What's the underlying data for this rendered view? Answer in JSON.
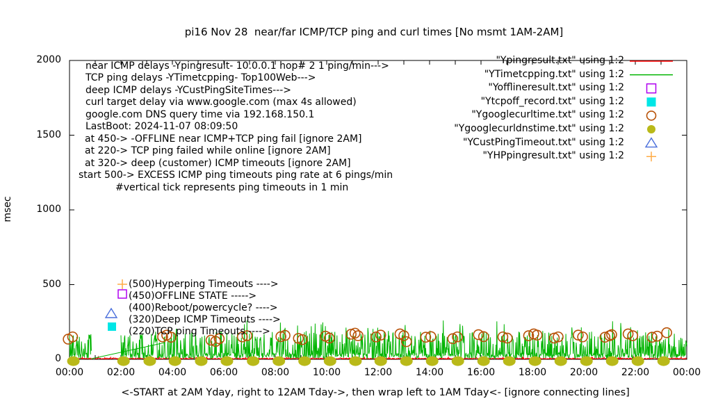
{
  "title": "pi16 Nov 28  near/far ICMP/TCP ping and curl times [No msmt 1AM-2AM]",
  "chart_data": {
    "type": "line",
    "title": "pi16 Nov 28  near/far ICMP/TCP ping and curl times [No msmt 1AM-2AM]",
    "ylabel": "msec",
    "xlabel": "<-START at 2AM Yday, right to 12AM Tday->, then wrap left to 1AM Tday<- [ignore connecting lines]",
    "ylim": [
      0,
      2000
    ],
    "xlim_hours": [
      0,
      24
    ],
    "grid": false,
    "legend_position": "top-right",
    "yticks": [
      {
        "value": 0,
        "label": "0"
      },
      {
        "value": 500,
        "label": "500"
      },
      {
        "value": 1000,
        "label": "1000"
      },
      {
        "value": 1500,
        "label": "1500"
      },
      {
        "value": 2000,
        "label": "2000"
      }
    ],
    "xticks": [
      {
        "hour": 0,
        "label": "00:00"
      },
      {
        "hour": 2,
        "label": "02:00"
      },
      {
        "hour": 4,
        "label": "04:00"
      },
      {
        "hour": 6,
        "label": "06:00"
      },
      {
        "hour": 8,
        "label": "08:00"
      },
      {
        "hour": 10,
        "label": "10:00"
      },
      {
        "hour": 12,
        "label": "12:00"
      },
      {
        "hour": 14,
        "label": "14:00"
      },
      {
        "hour": 16,
        "label": "16:00"
      },
      {
        "hour": 18,
        "label": "18:00"
      },
      {
        "hour": 20,
        "label": "20:00"
      },
      {
        "hour": 22,
        "label": "22:00"
      },
      {
        "hour": 24,
        "label": "00:00"
      }
    ],
    "minor_xtick_every_hours": 1,
    "legend": [
      {
        "label": "\"Ypingresult.txt\" using 1:2",
        "marker": "line",
        "color": "#ff0000"
      },
      {
        "label": "\"YTimetcpping.txt\" using 1:2",
        "marker": "line",
        "color": "#00b400"
      },
      {
        "label": "\"Yofflineresult.txt\" using 1:2",
        "marker": "open-square",
        "color": "#b000f0"
      },
      {
        "label": "\"Ytcpoff_record.txt\" using 1:2",
        "marker": "filled-square",
        "color": "#00e6e6"
      },
      {
        "label": "\"Ygooglecurltime.txt\" using 1:2",
        "marker": "open-circle",
        "color": "#b85208"
      },
      {
        "label": "\"Ygooglecurldnstime.txt\" using 1:2",
        "marker": "filled-circle",
        "color": "#b9b919"
      },
      {
        "label": "\"YCustPingTimeout.txt\" using 1:2",
        "marker": "open-triangle",
        "color": "#4a6fdc"
      },
      {
        "label": "\"YHPpingresult.txt\" using 1:2",
        "marker": "plus",
        "color": "#ffab45"
      }
    ],
    "notes_topleft": [
      {
        "x": 123,
        "y": 88,
        "text": "near ICMP delays -Ypingresult- 10.0.0.1 hop# 2 1 ping/min--->"
      },
      {
        "x": 123,
        "y": 105,
        "text": "TCP ping delays -YTimetcpping- Top100Web--->"
      },
      {
        "x": 123,
        "y": 123,
        "text": "deep ICMP delays -YCustPingSiteTimes--->"
      },
      {
        "x": 123,
        "y": 140,
        "text": "curl target delay via www.google.com (max 4s allowed)"
      },
      {
        "x": 123,
        "y": 158,
        "text": "google.com DNS query time via 192.168.150.1"
      },
      {
        "x": 123,
        "y": 175,
        "text": "LastBoot: 2024-11-07 08:09:50"
      },
      {
        "x": 122,
        "y": 193,
        "text": "at 450-> -OFFLINE near ICMP+TCP ping fail [ignore 2AM]"
      },
      {
        "x": 122,
        "y": 210,
        "text": "at 220-> TCP ping failed while online [ignore 2AM]"
      },
      {
        "x": 122,
        "y": 228,
        "text": "at 320-> deep (customer) ICMP timeouts [ignore 2AM]"
      },
      {
        "x": 113,
        "y": 245,
        "text": "start 500-> EXCESS ICMP ping timeouts ping rate at 6 pings/min"
      },
      {
        "x": 166,
        "y": 263,
        "text": "#vertical tick represents ping timeouts in 1 min"
      }
    ],
    "notes_lowerleft": [
      {
        "x": 185,
        "y": 402,
        "text": "(500)Hyperping Timeouts ---->"
      },
      {
        "x": 185,
        "y": 419,
        "text": "(450)OFFLINE STATE ----->"
      },
      {
        "x": 185,
        "y": 436,
        "text": "(400)Reboot/powercycle? ---->"
      },
      {
        "x": 185,
        "y": 453,
        "text": "(320)Deep ICMP Timeouts ---->"
      },
      {
        "x": 185,
        "y": 470,
        "text": "(220)TCP ping Timeouts ---->"
      }
    ],
    "note_markers": [
      {
        "type": "plus",
        "color": "#ffab45",
        "x": 176,
        "y": 409
      },
      {
        "type": "open-square",
        "color": "#b000f0",
        "x": 176,
        "y": 423
      },
      {
        "type": "open-triangle",
        "color": "#4a6fdc",
        "x": 160,
        "y": 451
      },
      {
        "type": "filled-square",
        "color": "#00e6e6",
        "x": 161,
        "y": 470
      }
    ],
    "series": {
      "near_icmp_red": {
        "style": "line",
        "color": "#ff0000",
        "range_h": [
          0,
          24
        ],
        "gen": {
          "seed": 9,
          "base": [
            1.5,
            7
          ],
          "spike_prob": 0.05,
          "spike": [
            9,
            8
          ]
        }
      },
      "tcp_ping_green": {
        "style": "line",
        "color": "#00b400",
        "range_h": [
          0,
          24
        ],
        "gap_h": [
          0.85,
          2.0
        ],
        "gen": {
          "seed": 1337,
          "base": [
            5,
            40
          ],
          "spike_prob": 0.32,
          "spike": [
            55,
            130
          ],
          "tall_prob": 0.02,
          "tall": [
            185,
            75
          ]
        },
        "extra_spikes": [
          [
            0.38,
            150
          ],
          [
            2.35,
            160
          ],
          [
            3.3,
            140
          ],
          [
            4.5,
            170
          ],
          [
            5.9,
            185
          ],
          [
            6.4,
            160
          ],
          [
            7.3,
            150
          ],
          [
            8.35,
            200
          ],
          [
            9.6,
            170
          ],
          [
            10.4,
            160
          ],
          [
            11.6,
            210
          ],
          [
            12.4,
            190
          ],
          [
            13.05,
            230
          ],
          [
            14.5,
            175
          ],
          [
            15.3,
            160
          ],
          [
            16.9,
            235
          ],
          [
            17.5,
            180
          ],
          [
            18.4,
            190
          ],
          [
            19.3,
            170
          ],
          [
            20.3,
            185
          ],
          [
            21.12,
            255
          ],
          [
            21.45,
            195
          ],
          [
            22.4,
            180
          ],
          [
            23.3,
            200
          ]
        ],
        "connector": {
          "from": [
            0.83,
            3
          ],
          "to": [
            3.72,
            112
          ]
        }
      },
      "curl_circles": {
        "style": "open-circle",
        "color": "#b85208",
        "points": [
          [
            -0.05,
            135
          ],
          [
            0.12,
            150
          ],
          [
            3.62,
            150
          ],
          [
            3.78,
            162
          ],
          [
            3.95,
            148
          ],
          [
            5.5,
            128
          ],
          [
            5.68,
            120
          ],
          [
            5.82,
            138
          ],
          [
            6.72,
            150
          ],
          [
            6.9,
            158
          ],
          [
            8.22,
            152
          ],
          [
            8.38,
            160
          ],
          [
            8.9,
            140
          ],
          [
            9.05,
            132
          ],
          [
            9.95,
            155
          ],
          [
            10.1,
            142
          ],
          [
            10.95,
            168
          ],
          [
            11.1,
            175
          ],
          [
            11.22,
            158
          ],
          [
            11.92,
            150
          ],
          [
            12.1,
            162
          ],
          [
            12.85,
            170
          ],
          [
            13.0,
            158
          ],
          [
            13.1,
            118
          ],
          [
            13.85,
            148
          ],
          [
            14.05,
            152
          ],
          [
            14.9,
            138
          ],
          [
            15.08,
            150
          ],
          [
            15.9,
            165
          ],
          [
            16.1,
            152
          ],
          [
            16.85,
            150
          ],
          [
            17.02,
            142
          ],
          [
            17.85,
            158
          ],
          [
            18.05,
            170
          ],
          [
            18.18,
            162
          ],
          [
            18.85,
            142
          ],
          [
            19.0,
            150
          ],
          [
            19.78,
            162
          ],
          [
            19.95,
            150
          ],
          [
            20.82,
            148
          ],
          [
            21.0,
            158
          ],
          [
            21.08,
            165
          ],
          [
            21.72,
            170
          ],
          [
            21.9,
            158
          ],
          [
            22.65,
            148
          ],
          [
            22.85,
            155
          ],
          [
            23.22,
            178
          ]
        ]
      },
      "dns_blobs": {
        "style": "filled-ellipse",
        "color": "#b9b919",
        "value": 2,
        "hours": [
          0.15,
          2.1,
          3.12,
          4.1,
          5.12,
          6.12,
          7.14,
          8.14,
          9.14,
          10.13,
          11.12,
          12.1,
          13.1,
          14.1,
          15.1,
          16.1,
          17.1,
          18.1,
          19.1,
          20.1,
          21.1,
          22.1,
          23.1
        ]
      },
      "offline_squares": {
        "style": "open-square",
        "color": "#b000f0",
        "points": []
      },
      "tcpoff_squares": {
        "style": "filled-square",
        "color": "#00e6e6",
        "points": []
      },
      "custping_triangles": {
        "style": "open-triangle",
        "color": "#4a6fdc",
        "points": []
      },
      "hp_ping_plus": {
        "style": "plus",
        "color": "#ffab45",
        "points": []
      }
    }
  }
}
